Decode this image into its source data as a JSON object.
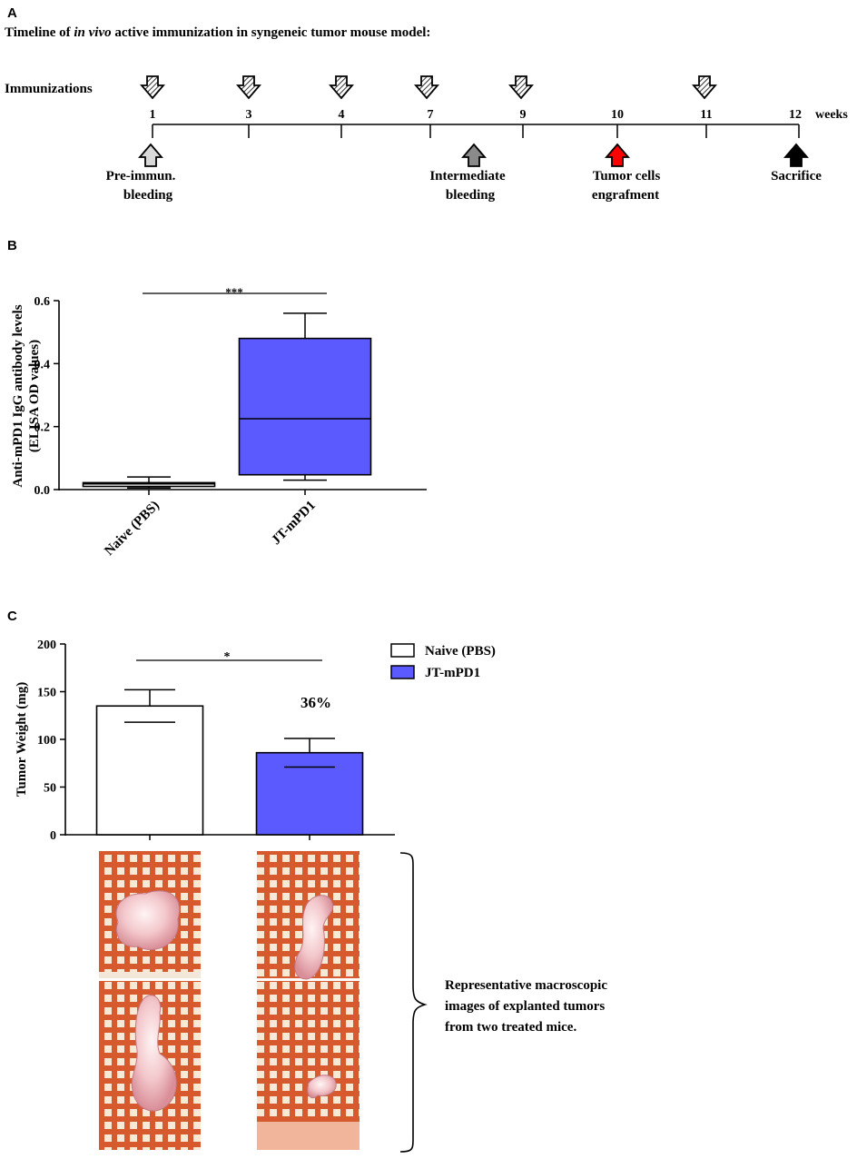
{
  "panel_a": {
    "letter": "A",
    "title_pre": "Timeline of ",
    "title_em": "in vivo",
    "title_post": " active immunization in syngeneic tumor mouse model:",
    "row_label": "Immunizations",
    "weeks_label": "weeks",
    "timepoints": [
      "1",
      "3",
      "4",
      "7",
      "9",
      "10",
      "11",
      "12"
    ],
    "immunization_weeks": [
      "1",
      "3",
      "4",
      "7",
      "9",
      "11"
    ],
    "events": [
      {
        "name": "Pre-immun. bleeding",
        "line1": "Pre-immun.",
        "line2": "bleeding",
        "color": "#d9d9d9"
      },
      {
        "name": "Intermediate bleeding",
        "line1": "Intermediate",
        "line2": "bleeding",
        "color": "#8a8a8a"
      },
      {
        "name": "Tumor cells engrafment",
        "line1": "Tumor cells",
        "line2": "engrafment",
        "color": "#ff0000"
      },
      {
        "name": "Sacrifice",
        "line1": "Sacrifice",
        "line2": "",
        "color": "#000000"
      }
    ]
  },
  "panel_b": {
    "letter": "B",
    "significance": "***"
  },
  "panel_c": {
    "letter": "C",
    "significance": "*",
    "percent_label": "36%",
    "legend_colors": [
      "#ffffff",
      "#5a5aff"
    ],
    "caption_lines": [
      "Representative macroscopic",
      "images of explanted tumors",
      "from two treated mice."
    ]
  },
  "chart_data": [
    {
      "type": "box",
      "title": "",
      "ylabel_line1": "Anti-mPD1 IgG antibody levels",
      "ylabel_line2": "(ELISA OD values)",
      "ylim": [
        0,
        0.6
      ],
      "yticks": [
        "0.0",
        "0.2",
        "0.4",
        "0.6"
      ],
      "categories": [
        "Naive (PBS)",
        "JT-mPD1"
      ],
      "boxes": [
        {
          "name": "Naive (PBS)",
          "min": 0.005,
          "q1": 0.01,
          "median": 0.018,
          "q3": 0.022,
          "max": 0.04,
          "color": "#ffffff"
        },
        {
          "name": "JT-mPD1",
          "min": 0.03,
          "q1": 0.047,
          "median": 0.225,
          "q3": 0.48,
          "max": 0.56,
          "color": "#5a5aff"
        }
      ]
    },
    {
      "type": "bar",
      "title": "",
      "ylabel": "Tumor Weight (mg)",
      "ylim": [
        0,
        200
      ],
      "yticks": [
        "0",
        "50",
        "100",
        "150",
        "200"
      ],
      "categories": [
        "Naive (PBS)",
        "JT-mPD1"
      ],
      "values": [
        135,
        86
      ],
      "errors": [
        17,
        15
      ],
      "colors": [
        "#ffffff",
        "#5a5aff"
      ],
      "legend": [
        "Naive (PBS)",
        "JT-mPD1"
      ]
    }
  ]
}
